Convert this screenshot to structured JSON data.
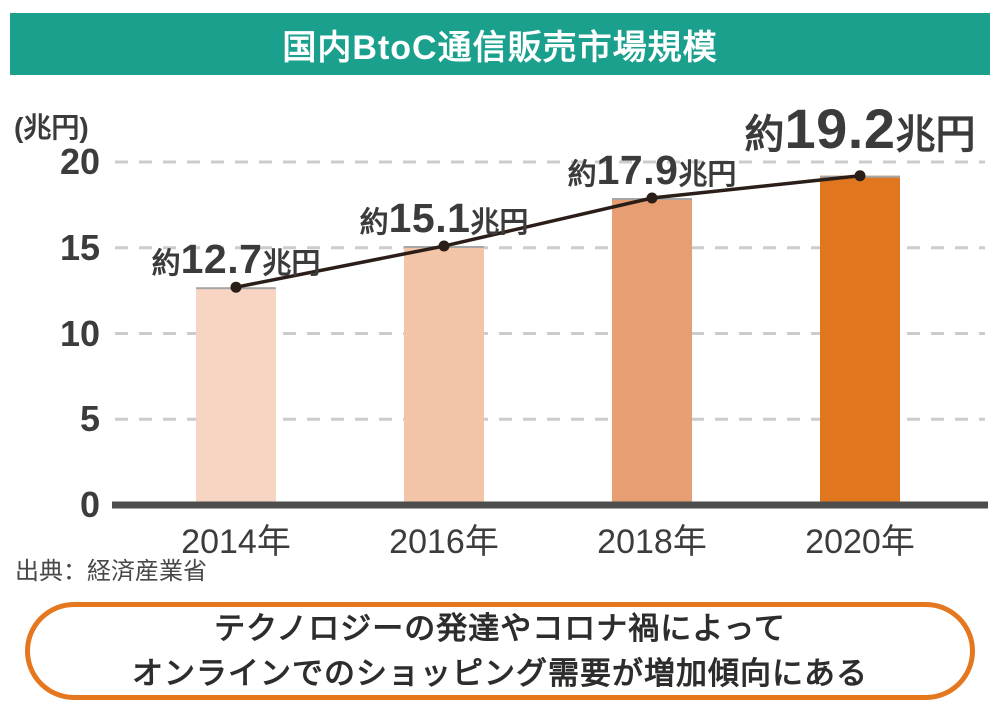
{
  "title": "国内BtoC通信販売市場規模",
  "source": "出典：経済産業省",
  "callout": {
    "lines": [
      "テクノロジーの発達やコロナ禍によって",
      "オンラインでのショッピング需要が増加傾向にある"
    ]
  },
  "chart_data": {
    "type": "bar",
    "title": "国内BtoC通信販売市場規模",
    "categories": [
      "2014年",
      "2016年",
      "2018年",
      "2020年"
    ],
    "values": [
      12.7,
      15.1,
      17.9,
      19.2
    ],
    "value_labels": [
      "約12.7兆円",
      "約15.1兆円",
      "約17.9兆円",
      "約19.2兆円"
    ],
    "value_label_prefix": "約",
    "value_label_suffix": "兆円",
    "highlight_index": 3,
    "ylabel": "(兆円)",
    "xlabel": "",
    "y_ticks": [
      0,
      5,
      10,
      15,
      20
    ],
    "ylim": [
      0,
      20
    ],
    "grid": "horizontal-dashed",
    "legend": "none",
    "trend_line": true,
    "bar_colors": [
      "#f8d5c3",
      "#f2c4a8",
      "#e69e72",
      "#e0771f"
    ],
    "bar_cap_color": "#a6a6a6",
    "line_color": "#2b1e19",
    "grid_color": "#cccccc",
    "axis_color": "#4d4d4d",
    "label_color": "#3b3b3b"
  },
  "colors": {
    "banner_bg": "#1ba08e",
    "banner_text": "#ffffff",
    "callout_border": "#e5771e",
    "background": "#ffffff"
  }
}
